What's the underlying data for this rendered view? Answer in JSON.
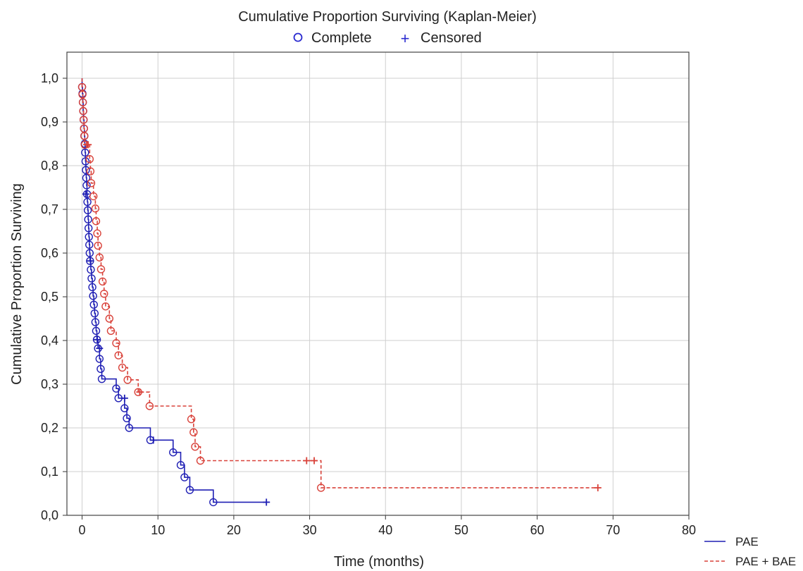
{
  "chart_data": {
    "type": "line",
    "title": "Cumulative Proportion Surviving (Kaplan-Meier)",
    "xlabel": "Time (months)",
    "ylabel": "Cumulative Proportion Surviving",
    "xlim": [
      -2,
      80
    ],
    "ylim": [
      0,
      1.0
    ],
    "xticks": [
      "0",
      "10",
      "20",
      "30",
      "40",
      "50",
      "60",
      "70",
      "80"
    ],
    "yticks": [
      "0,0",
      "0,1",
      "0,2",
      "0,3",
      "0,4",
      "0,5",
      "0,6",
      "0,7",
      "0,8",
      "0,9",
      "1,0"
    ],
    "grid": true,
    "legend_top": {
      "complete": "Complete",
      "censored": "Censored"
    },
    "series": [
      {
        "name": "PAE",
        "color": "#1f1fb4",
        "style": "solid",
        "steps": [
          [
            0,
            1.0
          ],
          [
            0,
            0.98
          ],
          [
            0.05,
            0.965
          ],
          [
            0.1,
            0.945
          ],
          [
            0.15,
            0.925
          ],
          [
            0.2,
            0.905
          ],
          [
            0.25,
            0.885
          ],
          [
            0.3,
            0.868
          ],
          [
            0.35,
            0.85
          ],
          [
            0.4,
            0.83
          ],
          [
            0.45,
            0.81
          ],
          [
            0.5,
            0.79
          ],
          [
            0.55,
            0.772
          ],
          [
            0.6,
            0.755
          ],
          [
            0.65,
            0.735
          ],
          [
            0.7,
            0.717
          ],
          [
            0.75,
            0.698
          ],
          [
            0.8,
            0.677
          ],
          [
            0.85,
            0.657
          ],
          [
            0.9,
            0.637
          ],
          [
            0.95,
            0.619
          ],
          [
            1.0,
            0.6
          ],
          [
            1.05,
            0.582
          ],
          [
            1.15,
            0.562
          ],
          [
            1.25,
            0.542
          ],
          [
            1.35,
            0.522
          ],
          [
            1.45,
            0.502
          ],
          [
            1.55,
            0.482
          ],
          [
            1.65,
            0.462
          ],
          [
            1.75,
            0.442
          ],
          [
            1.85,
            0.422
          ],
          [
            1.95,
            0.402
          ],
          [
            2.1,
            0.382
          ],
          [
            2.3,
            0.358
          ],
          [
            2.45,
            0.335
          ],
          [
            2.6,
            0.312
          ],
          [
            4.5,
            0.29
          ],
          [
            4.8,
            0.268
          ],
          [
            5.6,
            0.245
          ],
          [
            5.9,
            0.222
          ],
          [
            6.2,
            0.2
          ],
          [
            9.0,
            0.172
          ],
          [
            12.0,
            0.144
          ],
          [
            13.0,
            0.115
          ],
          [
            13.5,
            0.087
          ],
          [
            14.2,
            0.058
          ],
          [
            17.3,
            0.03
          ],
          [
            24.3,
            0.03
          ]
        ],
        "complete": [
          [
            0,
            0.98
          ],
          [
            0.05,
            0.965
          ],
          [
            0.1,
            0.945
          ],
          [
            0.15,
            0.925
          ],
          [
            0.2,
            0.905
          ],
          [
            0.25,
            0.885
          ],
          [
            0.3,
            0.868
          ],
          [
            0.35,
            0.85
          ],
          [
            0.4,
            0.83
          ],
          [
            0.45,
            0.81
          ],
          [
            0.5,
            0.79
          ],
          [
            0.55,
            0.772
          ],
          [
            0.6,
            0.755
          ],
          [
            0.65,
            0.735
          ],
          [
            0.7,
            0.717
          ],
          [
            0.75,
            0.698
          ],
          [
            0.8,
            0.677
          ],
          [
            0.85,
            0.657
          ],
          [
            0.9,
            0.637
          ],
          [
            0.95,
            0.619
          ],
          [
            1.0,
            0.6
          ],
          [
            1.05,
            0.582
          ],
          [
            1.15,
            0.562
          ],
          [
            1.25,
            0.542
          ],
          [
            1.35,
            0.522
          ],
          [
            1.45,
            0.502
          ],
          [
            1.55,
            0.482
          ],
          [
            1.65,
            0.462
          ],
          [
            1.75,
            0.442
          ],
          [
            1.85,
            0.422
          ],
          [
            1.95,
            0.402
          ],
          [
            2.1,
            0.382
          ],
          [
            2.3,
            0.358
          ],
          [
            2.45,
            0.335
          ],
          [
            2.6,
            0.312
          ],
          [
            4.5,
            0.29
          ],
          [
            4.8,
            0.268
          ],
          [
            5.6,
            0.245
          ],
          [
            5.9,
            0.222
          ],
          [
            6.2,
            0.2
          ],
          [
            9.0,
            0.172
          ],
          [
            12.0,
            0.144
          ],
          [
            13.0,
            0.115
          ],
          [
            13.5,
            0.087
          ],
          [
            14.2,
            0.058
          ],
          [
            17.3,
            0.03
          ]
        ],
        "censored": [
          [
            0.5,
            0.735
          ],
          [
            1.1,
            0.582
          ],
          [
            2.0,
            0.402
          ],
          [
            2.3,
            0.382
          ],
          [
            5.6,
            0.268
          ],
          [
            9.4,
            0.172
          ],
          [
            24.3,
            0.03
          ]
        ]
      },
      {
        "name": "PAE + BAE",
        "color": "#d9423a",
        "style": "dashed",
        "steps": [
          [
            0,
            1.0
          ],
          [
            0,
            0.98
          ],
          [
            0.05,
            0.963
          ],
          [
            0.1,
            0.945
          ],
          [
            0.15,
            0.925
          ],
          [
            0.2,
            0.905
          ],
          [
            0.25,
            0.885
          ],
          [
            0.3,
            0.868
          ],
          [
            0.35,
            0.848
          ],
          [
            1.0,
            0.815
          ],
          [
            1.1,
            0.787
          ],
          [
            1.2,
            0.76
          ],
          [
            1.5,
            0.73
          ],
          [
            1.75,
            0.702
          ],
          [
            1.85,
            0.673
          ],
          [
            2.0,
            0.645
          ],
          [
            2.1,
            0.617
          ],
          [
            2.3,
            0.59
          ],
          [
            2.5,
            0.563
          ],
          [
            2.7,
            0.535
          ],
          [
            2.9,
            0.507
          ],
          [
            3.1,
            0.478
          ],
          [
            3.6,
            0.45
          ],
          [
            3.8,
            0.422
          ],
          [
            4.5,
            0.394
          ],
          [
            4.8,
            0.366
          ],
          [
            5.3,
            0.338
          ],
          [
            6.0,
            0.31
          ],
          [
            7.4,
            0.282
          ],
          [
            8.9,
            0.25
          ],
          [
            14.4,
            0.22
          ],
          [
            14.7,
            0.19
          ],
          [
            14.9,
            0.157
          ],
          [
            15.6,
            0.125
          ],
          [
            31.5,
            0.063
          ],
          [
            68.0,
            0.063
          ]
        ],
        "complete": [
          [
            0,
            0.98
          ],
          [
            0.05,
            0.963
          ],
          [
            0.1,
            0.945
          ],
          [
            0.15,
            0.925
          ],
          [
            0.2,
            0.905
          ],
          [
            0.25,
            0.885
          ],
          [
            0.3,
            0.868
          ],
          [
            0.35,
            0.848
          ],
          [
            1.0,
            0.815
          ],
          [
            1.1,
            0.787
          ],
          [
            1.2,
            0.76
          ],
          [
            1.5,
            0.73
          ],
          [
            1.75,
            0.702
          ],
          [
            1.85,
            0.673
          ],
          [
            2.0,
            0.645
          ],
          [
            2.1,
            0.617
          ],
          [
            2.3,
            0.59
          ],
          [
            2.5,
            0.563
          ],
          [
            2.7,
            0.535
          ],
          [
            2.9,
            0.507
          ],
          [
            3.1,
            0.478
          ],
          [
            3.6,
            0.45
          ],
          [
            3.8,
            0.422
          ],
          [
            4.5,
            0.394
          ],
          [
            4.8,
            0.366
          ],
          [
            5.3,
            0.338
          ],
          [
            6.0,
            0.31
          ],
          [
            7.4,
            0.282
          ],
          [
            8.9,
            0.25
          ],
          [
            14.4,
            0.22
          ],
          [
            14.7,
            0.19
          ],
          [
            14.9,
            0.157
          ],
          [
            15.6,
            0.125
          ],
          [
            31.5,
            0.063
          ]
        ],
        "censored": [
          [
            0.6,
            0.848
          ],
          [
            0.8,
            0.848
          ],
          [
            7.6,
            0.282
          ],
          [
            29.6,
            0.125
          ],
          [
            30.6,
            0.125
          ],
          [
            68.0,
            0.063
          ]
        ]
      }
    ]
  }
}
